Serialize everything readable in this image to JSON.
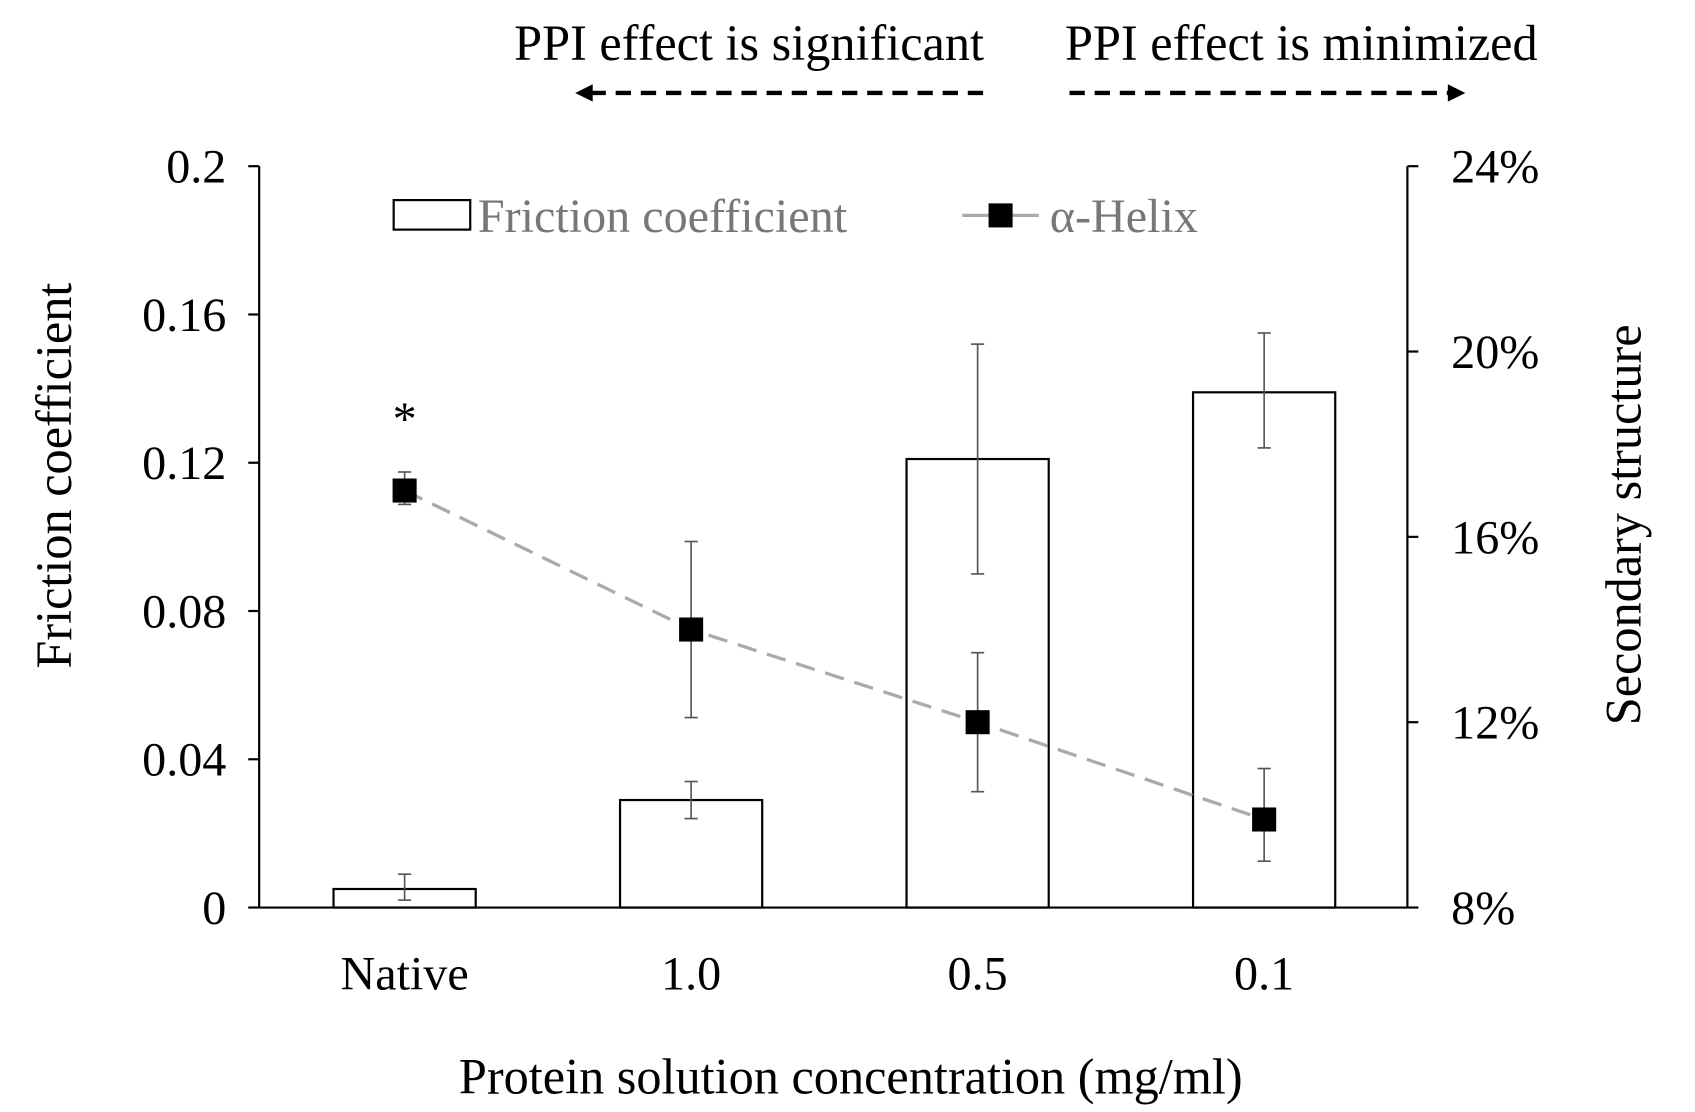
{
  "chart_data": {
    "type": "bar",
    "title": "",
    "annotations": {
      "left_arrow": "PPI effect is significant",
      "right_arrow": "PPI effect is minimized",
      "significance_marker": "*"
    },
    "xlabel": "Protein solution concentration (mg/ml)",
    "ylabel": "Friction coefficient",
    "y2label": "Secondary structure",
    "categories": [
      "Native",
      "1.0",
      "0.5",
      "0.1"
    ],
    "ylim": [
      0,
      0.2
    ],
    "yticks": [
      "0",
      "0.04",
      "0.08",
      "0.12",
      "0.16",
      "0.2"
    ],
    "y2lim": [
      8,
      24
    ],
    "y2ticks": [
      "8%",
      "12%",
      "16%",
      "20%",
      "24%"
    ],
    "series": [
      {
        "name": "Friction coefficient",
        "type": "bar",
        "axis": "left",
        "values": [
          0.005,
          0.029,
          0.121,
          0.139
        ],
        "err_low": [
          0.002,
          0.024,
          0.09,
          0.124
        ],
        "err_high": [
          0.009,
          0.034,
          0.152,
          0.155
        ]
      },
      {
        "name": "α-Helix",
        "type": "line",
        "axis": "right",
        "values": [
          17.0,
          14.0,
          12.0,
          9.9
        ],
        "err_low": [
          16.7,
          12.1,
          10.5,
          9.0
        ],
        "err_high": [
          17.4,
          15.9,
          13.5,
          11.0
        ]
      }
    ],
    "legend_position": "top",
    "grid": false
  }
}
